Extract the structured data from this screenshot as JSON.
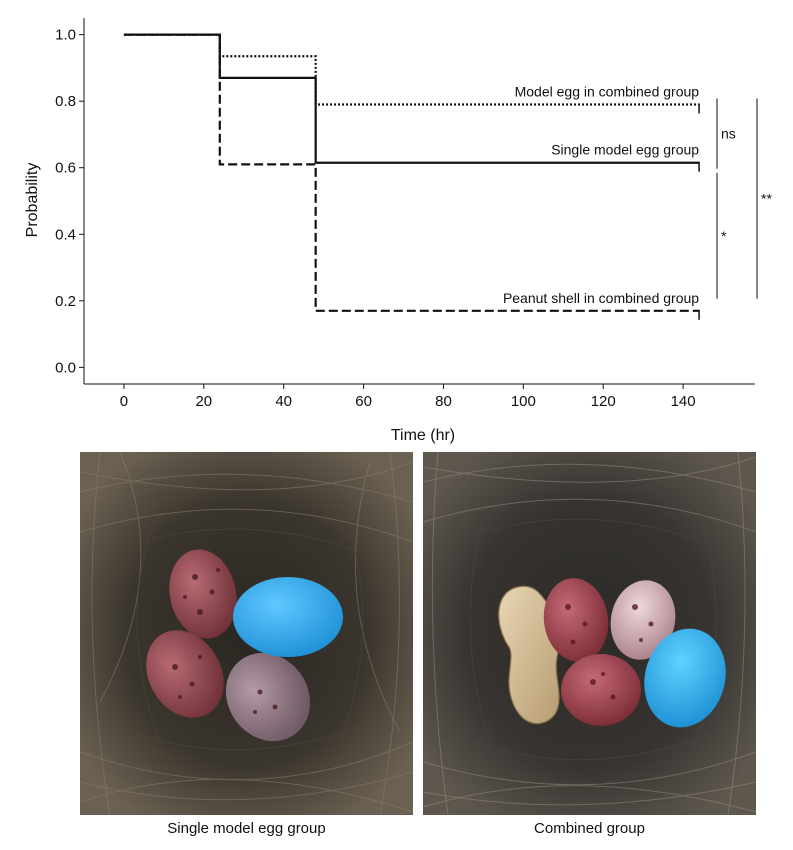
{
  "chart_data": {
    "type": "line",
    "step": true,
    "xlabel": "Time (hr)",
    "ylabel": "Probability",
    "xlim": [
      -10,
      158
    ],
    "ylim": [
      -0.05,
      1.05
    ],
    "xticks": [
      0,
      20,
      40,
      60,
      80,
      100,
      120,
      140
    ],
    "yticks": [
      0.0,
      0.2,
      0.4,
      0.6,
      0.8,
      1.0
    ],
    "xtick_labels": [
      "0",
      "20",
      "40",
      "60",
      "80",
      "100",
      "120",
      "140"
    ],
    "ytick_labels": [
      "0.0",
      "0.2",
      "0.4",
      "0.6",
      "0.8",
      "1.0"
    ],
    "grid": false,
    "series": [
      {
        "name": "Model egg in combined group",
        "style": "dotted",
        "x": [
          0,
          24,
          48,
          144
        ],
        "y": [
          1.0,
          0.935,
          0.79,
          0.79
        ]
      },
      {
        "name": "Single model egg group",
        "style": "solid",
        "x": [
          0,
          24,
          48,
          144
        ],
        "y": [
          1.0,
          0.87,
          0.615,
          0.615
        ]
      },
      {
        "name": "Peanut shell in combined group",
        "style": "dashed",
        "x": [
          0,
          24,
          48,
          144
        ],
        "y": [
          1.0,
          0.61,
          0.17,
          0.17
        ]
      }
    ],
    "significance": [
      {
        "label": "ns",
        "between": [
          "Model egg in combined group",
          "Single model egg group"
        ]
      },
      {
        "label": "*",
        "between": [
          "Single model egg group",
          "Peanut shell in combined group"
        ]
      },
      {
        "label": "**",
        "between": [
          "Model egg in combined group",
          "Peanut shell in combined group"
        ]
      }
    ]
  },
  "photos": [
    {
      "caption": "Single model egg group"
    },
    {
      "caption": "Combined group"
    }
  ]
}
